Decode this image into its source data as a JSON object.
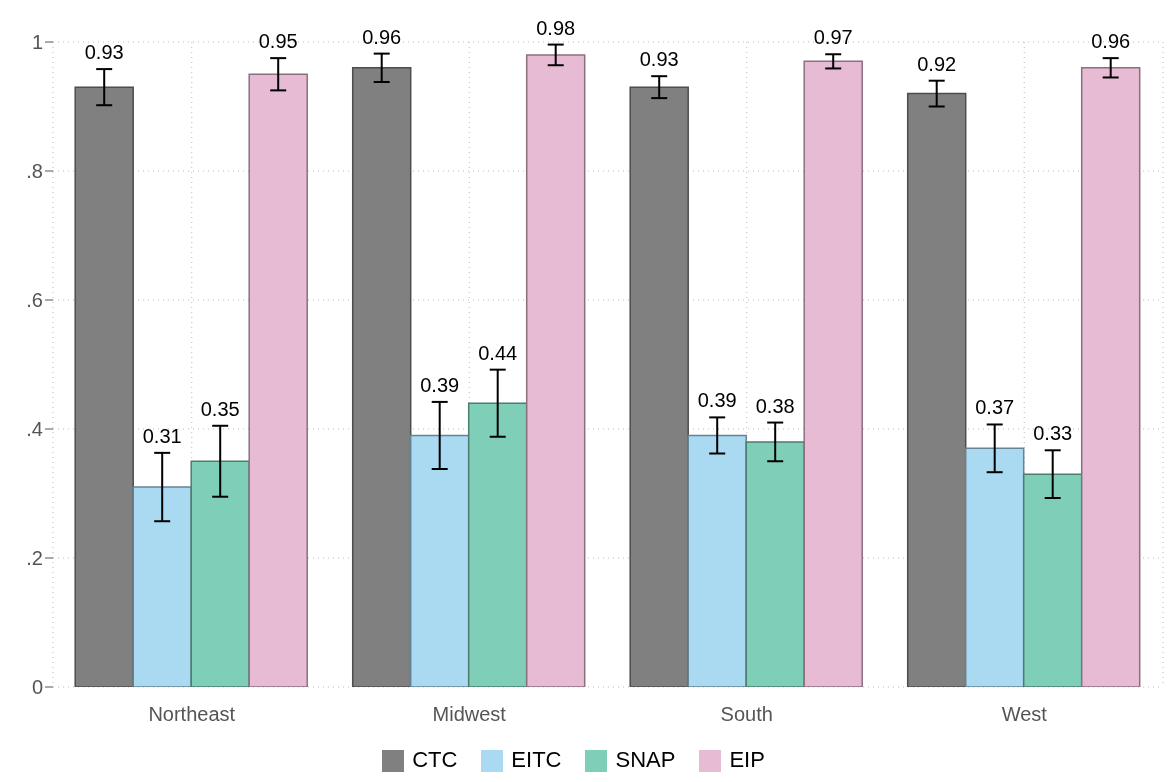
{
  "chart_data": {
    "type": "bar",
    "categories": [
      "Northeast",
      "Midwest",
      "South",
      "West"
    ],
    "series": [
      {
        "name": "CTC",
        "color": "#808080",
        "values": [
          0.93,
          0.96,
          0.93,
          0.92
        ],
        "errors": [
          0.028,
          0.022,
          0.017,
          0.02
        ]
      },
      {
        "name": "EITC",
        "color": "#a9daf2",
        "values": [
          0.31,
          0.39,
          0.39,
          0.37
        ],
        "errors": [
          0.053,
          0.052,
          0.028,
          0.037
        ]
      },
      {
        "name": "SNAP",
        "color": "#7fcfb8",
        "values": [
          0.35,
          0.44,
          0.38,
          0.33
        ],
        "errors": [
          0.055,
          0.052,
          0.03,
          0.037
        ]
      },
      {
        "name": "EIP",
        "color": "#e6bbd3",
        "values": [
          0.95,
          0.98,
          0.97,
          0.96
        ],
        "errors": [
          0.025,
          0.016,
          0.011,
          0.015
        ]
      }
    ],
    "ylim": [
      0,
      1
    ],
    "yticks": [
      {
        "value": 0,
        "label": "0"
      },
      {
        "value": 0.2,
        "label": ".2"
      },
      {
        "value": 0.4,
        "label": ".4"
      },
      {
        "value": 0.6,
        "label": ".6"
      },
      {
        "value": 0.8,
        "label": ".8"
      },
      {
        "value": 1,
        "label": "1"
      }
    ],
    "grid": true,
    "legend": "bottom",
    "data_labels": true
  }
}
